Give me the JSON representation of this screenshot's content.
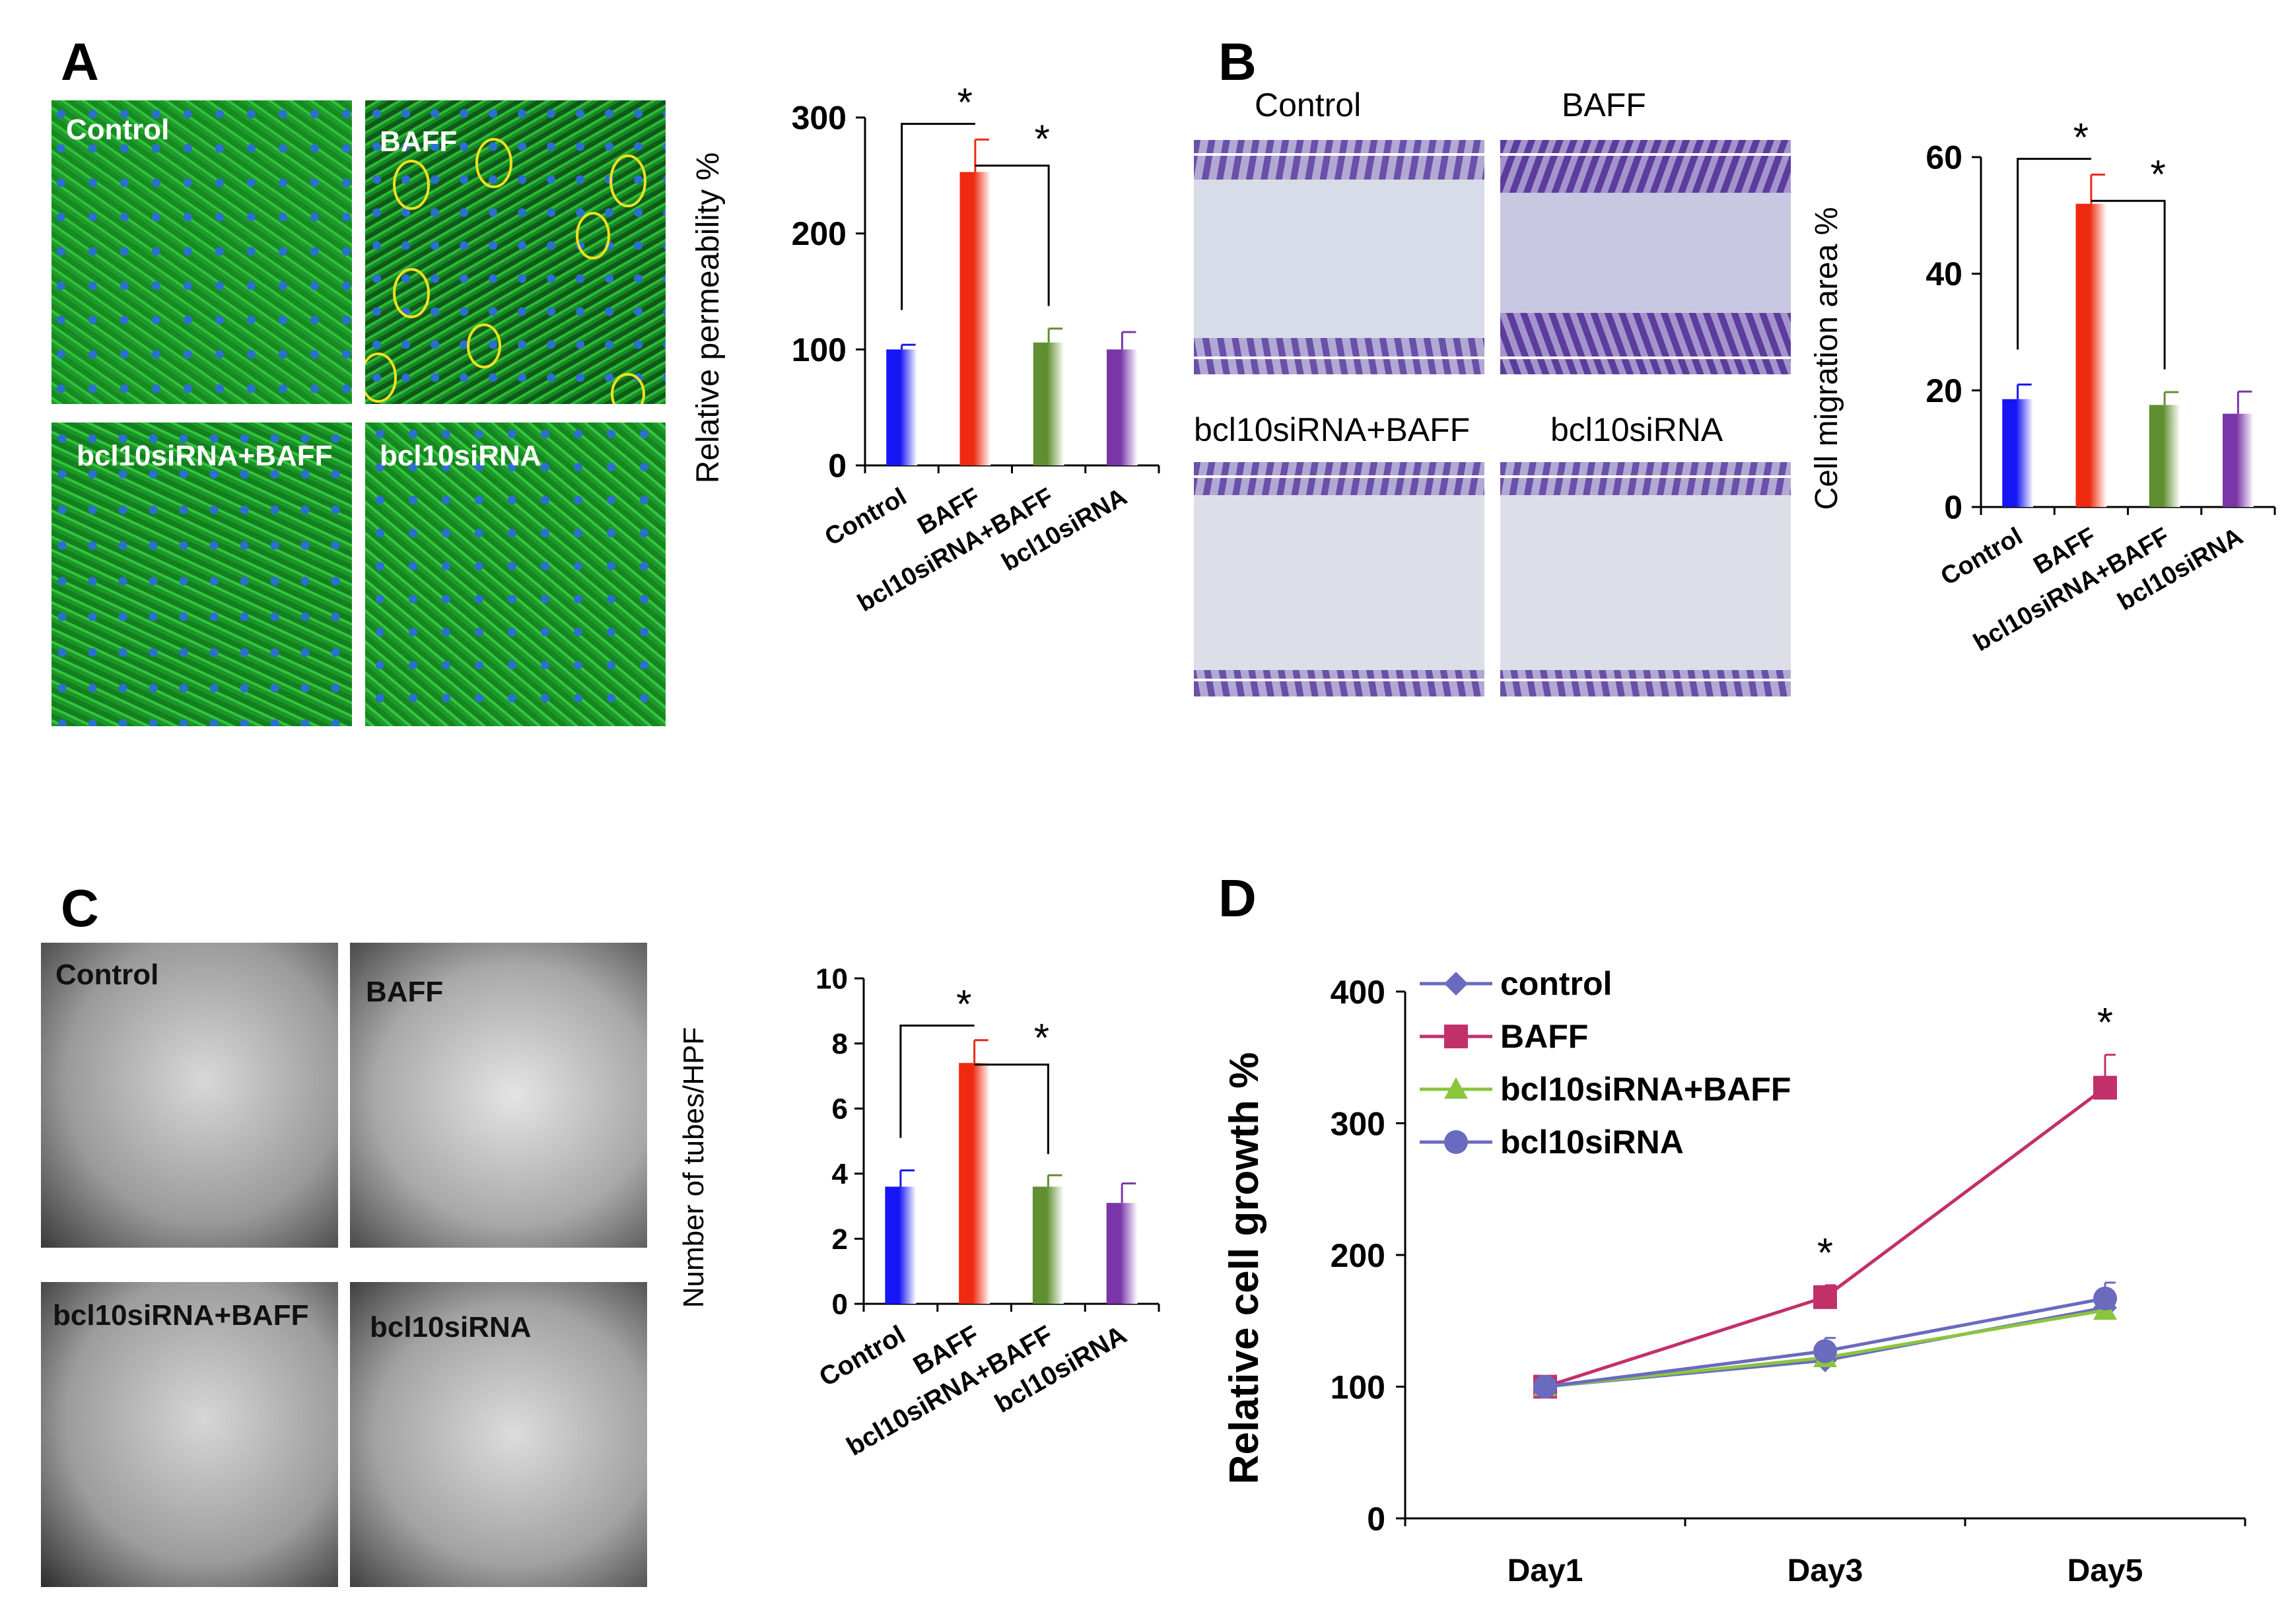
{
  "figure": {
    "panel_letters": [
      "A",
      "B",
      "C",
      "D"
    ]
  },
  "panel_a": {
    "images": [
      "Control",
      "BAFF",
      "bcl10siRNA+BAFF",
      "bcl10siRNA"
    ]
  },
  "panel_b": {
    "images": [
      "Control",
      "BAFF",
      "bcl10siRNA+BAFF",
      "bcl10siRNA"
    ]
  },
  "panel_c": {
    "images": [
      "Control",
      "BAFF",
      "bcl10siRNA+BAFF",
      "bcl10siRNA"
    ]
  },
  "colors": {
    "control": "#1515f5",
    "baff": "#ee2a10",
    "bcl10siRNA_baff": "#5f8f30",
    "bcl10siRNA": "#7a36a8",
    "line_control": "#6a6abf",
    "line_baff": "#c2306a",
    "line_bcl10siRNA_baff": "#8bc53f",
    "line_bcl10siRNA": "#6a6abf"
  },
  "chart_data": [
    {
      "id": "A",
      "type": "bar",
      "categories": [
        "Control",
        "BAFF",
        "bcl10siRNA+BAFF",
        "bcl10siRNA"
      ],
      "values": [
        100,
        253,
        106,
        100
      ],
      "errors": [
        4,
        28,
        12,
        15
      ],
      "ylabel": "Relative permeability %",
      "ylim": [
        0,
        300
      ],
      "yticks": [
        0,
        100,
        200,
        300
      ],
      "significance": [
        {
          "from": 0,
          "to": 1,
          "label": "*"
        },
        {
          "from": 1,
          "to": 2,
          "label": "*"
        }
      ]
    },
    {
      "id": "B",
      "type": "bar",
      "categories": [
        "Control",
        "BAFF",
        "bcl10siRNA+BAFF",
        "bcl10siRNA"
      ],
      "values": [
        18.5,
        52,
        17.5,
        16
      ],
      "errors": [
        2.5,
        5,
        2.2,
        3.8
      ],
      "ylabel": "Cell migration area %",
      "ylim": [
        0,
        60
      ],
      "yticks": [
        0,
        20,
        40,
        60
      ],
      "significance": [
        {
          "from": 0,
          "to": 1,
          "label": "*"
        },
        {
          "from": 1,
          "to": 2,
          "label": "*"
        }
      ]
    },
    {
      "id": "C",
      "type": "bar",
      "categories": [
        "Control",
        "BAFF",
        "bcl10siRNA+BAFF",
        "bcl10siRNA"
      ],
      "values": [
        3.6,
        7.4,
        3.6,
        3.1
      ],
      "errors": [
        0.5,
        0.7,
        0.35,
        0.6
      ],
      "ylabel": "Number of tubes/HPF",
      "ylim": [
        0,
        10
      ],
      "yticks": [
        0,
        2,
        4,
        6,
        8,
        10
      ],
      "significance": [
        {
          "from": 0,
          "to": 1,
          "label": "*"
        },
        {
          "from": 1,
          "to": 2,
          "label": "*"
        }
      ]
    },
    {
      "id": "D",
      "type": "line",
      "x": [
        "Day1",
        "Day3",
        "Day5"
      ],
      "ylabel": "Relative cell growth %",
      "ylim": [
        0,
        400
      ],
      "yticks": [
        0,
        100,
        200,
        300,
        400
      ],
      "series": [
        {
          "name": "control",
          "values": [
            100,
            120,
            160
          ],
          "errors": [
            3,
            8,
            10
          ],
          "marker": "diamond"
        },
        {
          "name": "BAFF",
          "values": [
            100,
            168,
            327
          ],
          "errors": [
            3,
            9,
            25
          ],
          "marker": "square"
        },
        {
          "name": "bcl10siRNA+BAFF",
          "values": [
            100,
            122,
            158
          ],
          "errors": [
            3,
            6,
            8
          ],
          "marker": "triangle"
        },
        {
          "name": "bcl10siRNA",
          "values": [
            100,
            127,
            167
          ],
          "errors": [
            3,
            10,
            12
          ],
          "marker": "circle"
        }
      ],
      "annotations": [
        {
          "x": "Day3",
          "label": "*"
        },
        {
          "x": "Day5",
          "label": "*"
        }
      ]
    }
  ]
}
